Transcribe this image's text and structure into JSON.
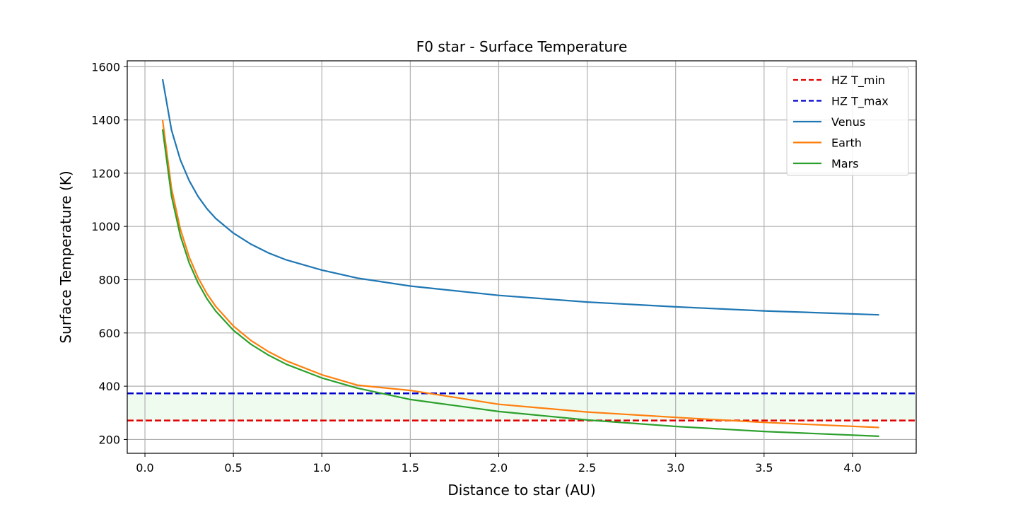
{
  "chart_data": {
    "type": "line",
    "title": "F0 star - Surface Temperature",
    "xlabel": "Distance to star (AU)",
    "ylabel": "Surface Temperature (K)",
    "xlim": [
      -0.1,
      4.36
    ],
    "ylim": [
      148,
      1622
    ],
    "grid": true,
    "legend_position": "top-right",
    "xticks": [
      0.0,
      0.5,
      1.0,
      1.5,
      2.0,
      2.5,
      3.0,
      3.5,
      4.0
    ],
    "xtick_labels": [
      "0.0",
      "0.5",
      "1.0",
      "1.5",
      "2.0",
      "2.5",
      "3.0",
      "3.5",
      "4.0"
    ],
    "yticks": [
      200,
      400,
      600,
      800,
      1000,
      1200,
      1400,
      1600
    ],
    "ytick_labels": [
      "200",
      "400",
      "600",
      "800",
      "1000",
      "1200",
      "1400",
      "1600"
    ],
    "habitable_zone_band": {
      "ymin": 271,
      "ymax": 373,
      "color": "#f0fbf0"
    },
    "reference_lines": [
      {
        "name": "HZ T_min",
        "y": 271,
        "color": "#e00000",
        "style": "dashed"
      },
      {
        "name": "HZ T_max",
        "y": 373,
        "color": "#0000cc",
        "style": "dashed"
      }
    ],
    "x": [
      0.1,
      0.15,
      0.2,
      0.25,
      0.3,
      0.35,
      0.4,
      0.5,
      0.6,
      0.7,
      0.8,
      1.0,
      1.2,
      1.5,
      2.0,
      2.5,
      3.0,
      3.5,
      4.15
    ],
    "series": [
      {
        "name": "Venus",
        "color": "#1f77b4",
        "values": [
          1553,
          1362,
          1250,
          1172,
          1113,
          1067,
          1030,
          975,
          933,
          900,
          874,
          836,
          806,
          776,
          741,
          716,
          698,
          683,
          668
        ]
      },
      {
        "name": "Earth",
        "color": "#ff7f0e",
        "values": [
          1400,
          1143,
          990,
          885,
          808,
          748,
          700,
          626,
          571,
          529,
          495,
          443,
          404,
          384,
          332,
          303,
          283,
          264,
          245
        ]
      },
      {
        "name": "Mars",
        "color": "#2ca02c",
        "values": [
          1365,
          1114,
          965,
          863,
          788,
          729,
          682,
          610,
          557,
          516,
          482,
          431,
          393,
          350,
          305,
          273,
          249,
          230,
          212
        ]
      }
    ]
  }
}
